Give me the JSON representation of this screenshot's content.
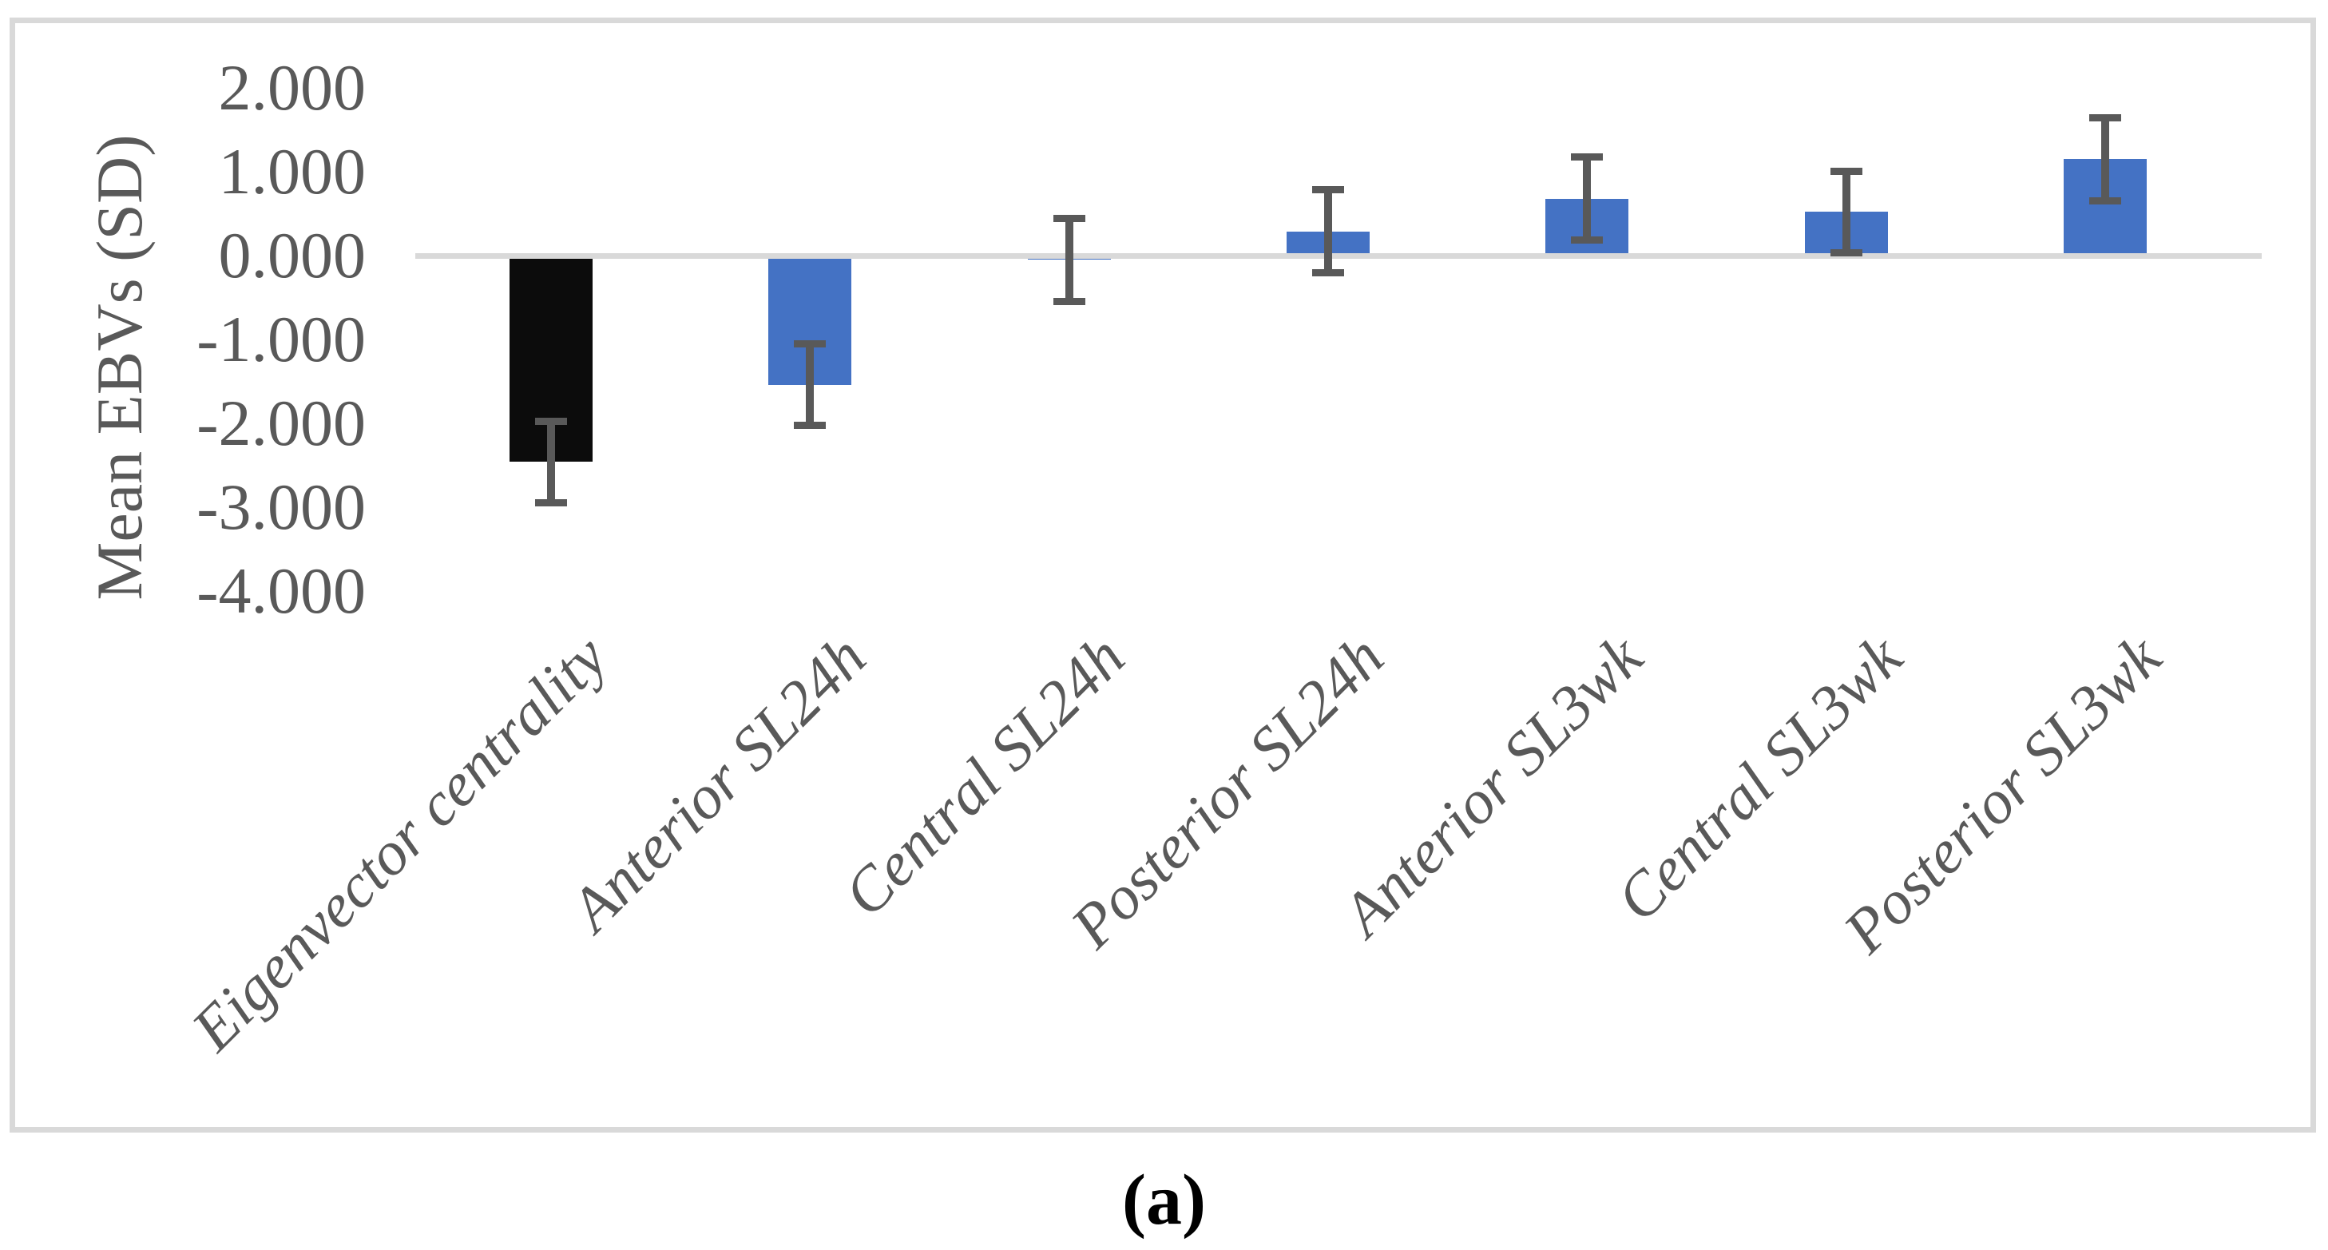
{
  "figure": {
    "caption": "(a)"
  },
  "chart_data": {
    "type": "bar",
    "title": "",
    "xlabel": "",
    "ylabel": "Mean EBVs (SD)",
    "categories": [
      "Eigenvector centrality",
      "Anterior SL24h",
      "Central SL24h",
      "Posterior SL24h",
      "Anterior SL3wk",
      "Central SL3wk",
      "Posterior SL3wk"
    ],
    "series": [
      {
        "name": "Mean EBVs",
        "values": [
          -2.46,
          -1.54,
          -0.05,
          0.29,
          0.68,
          0.52,
          1.15
        ],
        "error_sd": [
          0.49,
          0.49,
          0.5,
          0.5,
          0.5,
          0.49,
          0.5
        ]
      }
    ],
    "bar_colors": [
      "#0C0C0C",
      "#4472C4",
      "#4472C4",
      "#4472C4",
      "#4472C4",
      "#4472C4",
      "#4472C4"
    ],
    "ytick_values": [
      2,
      1,
      0,
      -1,
      -2,
      -3,
      -4
    ],
    "ytick_labels": [
      "2.000",
      "1.000",
      "0.000",
      "-1.000",
      "-2.000",
      "-3.000",
      "-4.000"
    ],
    "ylim": [
      -4.5,
      2.5
    ],
    "grid": "zero-line-only",
    "legend": "none",
    "error_bars": "plus-minus-sd",
    "colors": {
      "axis_text": "#595959",
      "x_label_text": "#595959",
      "error_bar": "#595959",
      "zero_line": "#D9D9D9",
      "frame_border": "#D9D9D9",
      "negative_first_bar": "#0C0C0C",
      "default_bar": "#4472C4",
      "caption_text": "#000000",
      "background": "#FFFFFF"
    }
  }
}
